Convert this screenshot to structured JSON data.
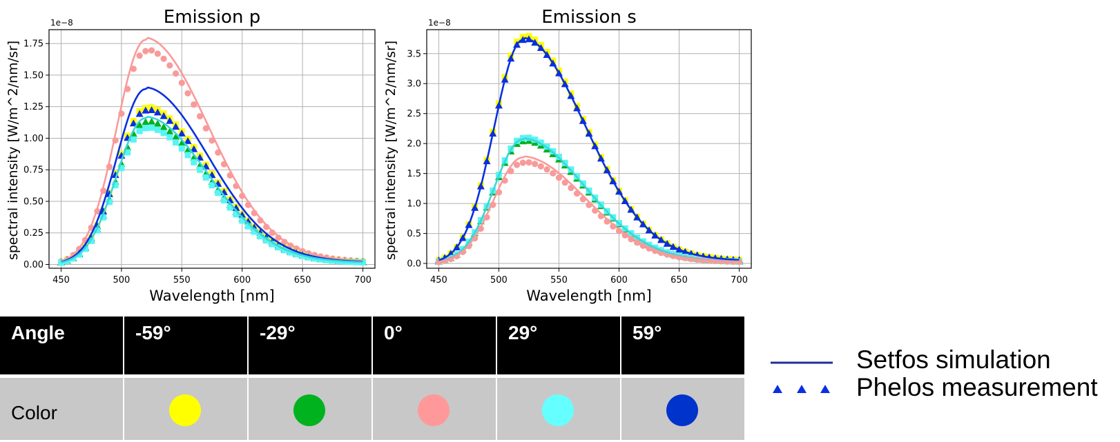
{
  "chart_data": [
    {
      "type": "line",
      "title": "Emission p",
      "xlabel": "Wavelength [nm]",
      "ylabel": "spectral intensity [W/m^2/nm/sr]",
      "offset_label": "1e−8",
      "xlim": [
        440,
        710
      ],
      "ylim": [
        -0.03,
        1.86
      ],
      "xticks": [
        450,
        500,
        550,
        600,
        650,
        700
      ],
      "xtick_labels": [
        "450",
        "500",
        "550",
        "600",
        "650",
        "700"
      ],
      "yticks": [
        0.0,
        0.25,
        0.5,
        0.75,
        1.0,
        1.25,
        1.5,
        1.75
      ],
      "ytick_labels": [
        "0.00",
        "0.25",
        "0.50",
        "0.75",
        "1.00",
        "1.25",
        "1.50",
        "1.75"
      ],
      "grid": true,
      "series": [
        {
          "angle": "0°",
          "color": "#f99a9a",
          "kind": "simulation",
          "peak": 1.78
        },
        {
          "angle": "59°",
          "color": "#0a2ee0",
          "kind": "simulation",
          "peak": 1.39
        },
        {
          "angle": "29°",
          "color": "#3ad6d6",
          "kind": "simulation",
          "peak": 1.16
        },
        {
          "angle": "0°",
          "color": "#f99a9a",
          "kind": "measurement",
          "marker": "circle",
          "peak": 1.69
        },
        {
          "angle": "-59°",
          "color": "#ffff00",
          "kind": "measurement",
          "marker": "square",
          "peak": 1.24
        },
        {
          "angle": "59°",
          "color": "#0a2ee0",
          "kind": "measurement",
          "marker": "triangle",
          "peak": 1.22
        },
        {
          "angle": "-29°",
          "color": "#00b21e",
          "kind": "measurement",
          "marker": "triangle",
          "peak": 1.13
        },
        {
          "angle": "29°",
          "color": "#59f4f4",
          "kind": "measurement",
          "marker": "square",
          "peak": 1.08
        }
      ]
    },
    {
      "type": "line",
      "title": "Emission s",
      "xlabel": "Wavelength [nm]",
      "ylabel": "spectral intensity [W/m^2/nm/sr]",
      "offset_label": "1e−8",
      "xlim": [
        440,
        710
      ],
      "ylim": [
        -0.08,
        3.9
      ],
      "xticks": [
        450,
        500,
        550,
        600,
        650,
        700
      ],
      "xtick_labels": [
        "450",
        "500",
        "550",
        "600",
        "650",
        "700"
      ],
      "yticks": [
        0.0,
        0.5,
        1.0,
        1.5,
        2.0,
        2.5,
        3.0,
        3.5
      ],
      "ytick_labels": [
        "0.0",
        "0.5",
        "1.0",
        "1.5",
        "2.0",
        "2.5",
        "3.0",
        "3.5"
      ],
      "grid": true,
      "series": [
        {
          "angle": "59°",
          "color": "#0a2ee0",
          "kind": "simulation",
          "peak": 3.73
        },
        {
          "angle": "29°",
          "color": "#3ad6d6",
          "kind": "simulation",
          "peak": 2.07
        },
        {
          "angle": "0°",
          "color": "#f99a9a",
          "kind": "simulation",
          "peak": 1.77
        },
        {
          "angle": "-59°",
          "color": "#ffff00",
          "kind": "measurement",
          "marker": "square",
          "peak": 3.78
        },
        {
          "angle": "59°",
          "color": "#0a2ee0",
          "kind": "measurement",
          "marker": "triangle",
          "peak": 3.73
        },
        {
          "angle": "-29°",
          "color": "#00b21e",
          "kind": "measurement",
          "marker": "triangle",
          "peak": 2.04
        },
        {
          "angle": "29°",
          "color": "#59f4f4",
          "kind": "measurement",
          "marker": "square",
          "peak": 2.09
        },
        {
          "angle": "0°",
          "color": "#f99a9a",
          "kind": "measurement",
          "marker": "circle",
          "peak": 1.68
        }
      ]
    }
  ],
  "angle_table": {
    "header_label": "Angle",
    "color_label": "Color",
    "angles": [
      "-59°",
      "-29°",
      "0°",
      "29°",
      "59°"
    ],
    "colors": [
      "#ffff00",
      "#00b21e",
      "#ff9999",
      "#66ffff",
      "#0033cc"
    ]
  },
  "legend": {
    "simulation_label": "Setfos simulation",
    "measurement_label": "Phelos measurement",
    "color": "#1f2d99",
    "marker_color": "#0a2ee0"
  }
}
